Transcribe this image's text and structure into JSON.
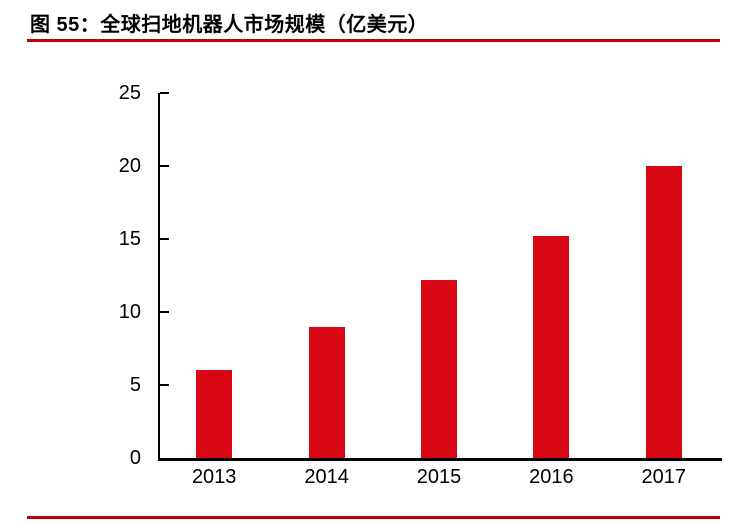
{
  "figure": {
    "title": "图 55：全球扫地机器人市场规模（亿美元）"
  },
  "colors": {
    "bar": "#d90614",
    "rule": "#c00000",
    "axis": "#000000",
    "text": "#000000"
  },
  "chart_data": {
    "type": "bar",
    "categories": [
      "2013",
      "2014",
      "2015",
      "2016",
      "2017"
    ],
    "values": [
      6,
      9,
      12.2,
      15.2,
      20
    ],
    "title": "图 55：全球扫地机器人市场规模（亿美元）",
    "xlabel": "",
    "ylabel": "",
    "ylim": [
      0,
      25
    ],
    "yticks": [
      0,
      5,
      10,
      15,
      20,
      25
    ],
    "grid": false,
    "legend": false,
    "bar_color": "#d90614"
  }
}
